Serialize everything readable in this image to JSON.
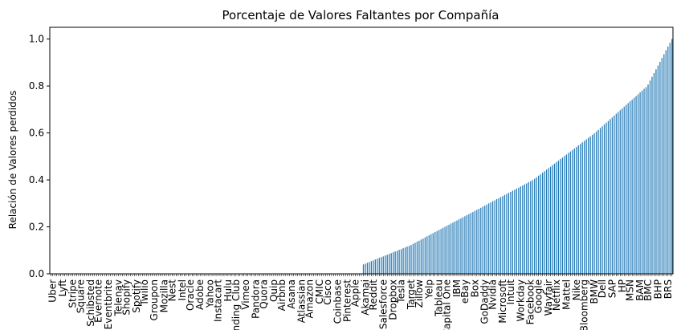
{
  "chart_data": {
    "type": "bar",
    "title": "Porcentaje de Valores Faltantes por Compañía",
    "xlabel": "",
    "ylabel": "Relación de Valores perdidos",
    "ylim": [
      0,
      1.05
    ],
    "yticks": [
      0.0,
      0.2,
      0.4,
      0.6,
      0.8,
      1.0
    ],
    "ytick_labels": [
      "0.0",
      "0.2",
      "0.4",
      "0.6",
      "0.8",
      "1.0"
    ],
    "bar_color": "#1f77b4",
    "grid": false,
    "legend": "none",
    "num_companies": 313,
    "num_zero_companies": 157,
    "visible_x_tick_labels": [
      "Uber",
      "Lyft",
      "Stripe",
      "Square",
      "Schibsted",
      "Evernote",
      "Eventbrite",
      "Telenav",
      "Shopify",
      "Spotify",
      "Twilio",
      "Groupon",
      "Mozilla",
      "Nest",
      "Intel",
      "Oracle",
      "Adobe",
      "Yahoo",
      "Instacart",
      "Hulu",
      "Lending Club",
      "Vimeo",
      "Pandora",
      "Quora",
      "Quip",
      "Airbnb",
      "Asana",
      "Atlassian",
      "Amazon",
      "CMIC",
      "Cisco",
      "Coinbase",
      "Pinterest",
      "Apple",
      "Akamai",
      "Reddit",
      "Salesforce",
      "Dropbox",
      "Tesla",
      "Target",
      "Zillow",
      "Yelp",
      "Tableau",
      "Capital One",
      "IBM",
      "eBay",
      "Box",
      "GoDaddy",
      "Nvidia",
      "Microsoft",
      "Intuit",
      "Workday",
      "Facebook",
      "Google",
      "Wayfair",
      "Netflix",
      "Mattel",
      "Nike",
      "Bloomberg",
      "BMW",
      "Dell",
      "SAP",
      "HP",
      "MSN",
      "BAM",
      "BMC",
      "BHP",
      "BRS"
    ]
  }
}
